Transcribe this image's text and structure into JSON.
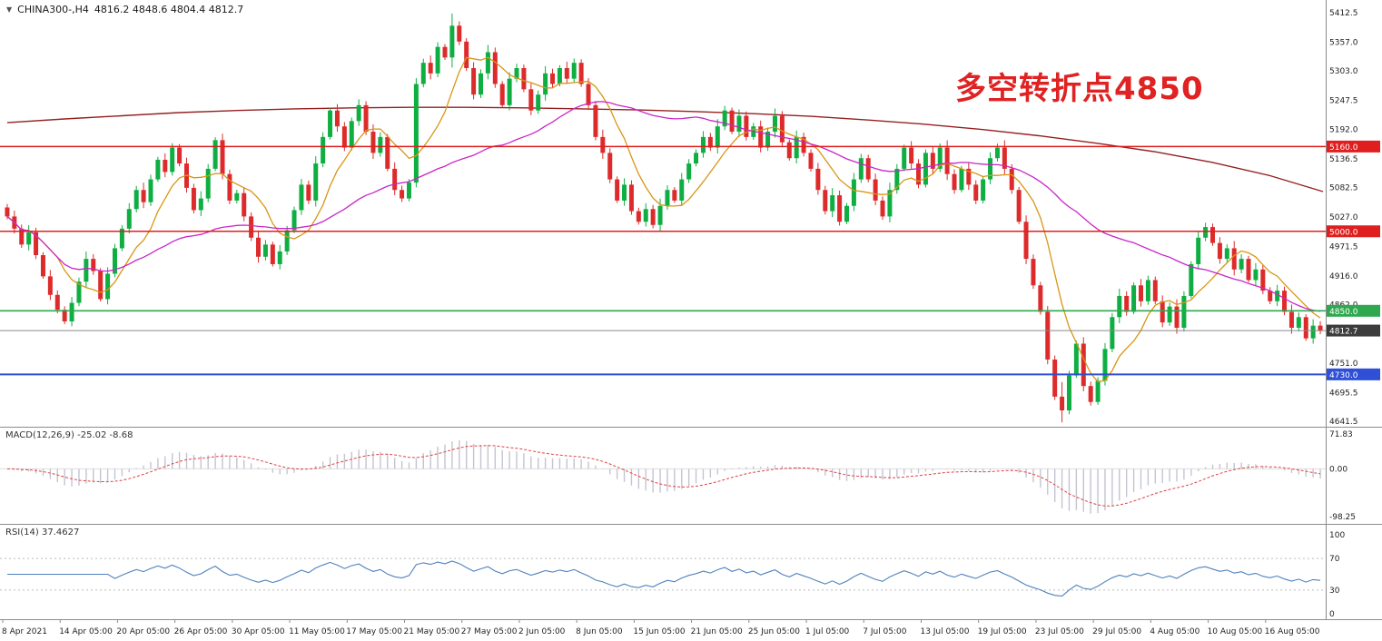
{
  "symbol_bar": {
    "symbol": "CHINA300-,H4",
    "ohlc": "4816.2 4848.6 4804.4 4812.7",
    "dropdown_icon": "triangle-down-icon"
  },
  "annotation": {
    "text": "多空转折点4850",
    "color": "#E02222"
  },
  "colors": {
    "candle_up": "#0EAE42",
    "candle_down": "#DD2B2B",
    "ma_fast": "#D89614",
    "ma_mid": "#C826C8",
    "ma_long": "#952020",
    "macd_hist": "#C4C4D2",
    "macd_signal": "#E04040",
    "rsi_line": "#4F81BD",
    "axis_text": "#222222",
    "separator": "#8c8c8c"
  },
  "chart_data": {
    "type": "candlestick",
    "instrument": "CHINA300-",
    "timeframe": "H4",
    "title": "CHINA300- H4 candlestick chart with MACD and RSI",
    "price_range": {
      "top": 5412.5,
      "bottom": 4641.5
    },
    "price_ticks": [
      "5412.5",
      "5357.0",
      "5303.0",
      "5247.5",
      "5192.0",
      "5136.5",
      "5082.5",
      "5027.0",
      "4971.5",
      "4916.0",
      "4862.0",
      "4751.0",
      "4695.5",
      "4641.5"
    ],
    "levels": [
      {
        "label": "5160.0",
        "value": 5160.0,
        "color": "#DF1F1F",
        "width": 1.6
      },
      {
        "label": "5000.0",
        "value": 5000.0,
        "color": "#DF1F1F",
        "width": 1.6
      },
      {
        "label": "4850.0",
        "value": 4850.0,
        "color": "#2FA84F",
        "width": 1.6
      },
      {
        "label": "4730.0",
        "value": 4730.0,
        "color": "#2F4FD6",
        "width": 2
      }
    ],
    "current_price": {
      "label": "4812.7",
      "value": 4812.7,
      "line_color": "#8a8a8a",
      "tag_bg": "#3C3C3C"
    },
    "candles": {
      "first_open": 5045,
      "closes": [
        5028,
        5005,
        4975,
        4998,
        4955,
        4915,
        4880,
        4852,
        4830,
        4865,
        4905,
        4948,
        4925,
        4872,
        4920,
        4968,
        5005,
        5042,
        5078,
        5055,
        5098,
        5135,
        5112,
        5158,
        5128,
        5082,
        5040,
        5062,
        5118,
        5172,
        5108,
        5058,
        5072,
        5028,
        4988,
        4952,
        4975,
        4938,
        4962,
        5002,
        5040,
        5088,
        5058,
        5128,
        5178,
        5228,
        5198,
        5158,
        5208,
        5238,
        5188,
        5148,
        5178,
        5118,
        5078,
        5062,
        5092,
        5278,
        5318,
        5298,
        5348,
        5328,
        5388,
        5358,
        5308,
        5258,
        5298,
        5338,
        5278,
        5238,
        5288,
        5308,
        5268,
        5228,
        5258,
        5298,
        5278,
        5308,
        5288,
        5318,
        5278,
        5238,
        5178,
        5148,
        5098,
        5058,
        5088,
        5038,
        5018,
        5042,
        5012,
        5048,
        5078,
        5058,
        5098,
        5128,
        5148,
        5178,
        5158,
        5198,
        5228,
        5188,
        5218,
        5178,
        5198,
        5158,
        5188,
        5218,
        5168,
        5138,
        5178,
        5148,
        5118,
        5078,
        5038,
        5068,
        5018,
        5048,
        5098,
        5138,
        5098,
        5058,
        5028,
        5078,
        5118,
        5158,
        5128,
        5088,
        5148,
        5118,
        5158,
        5108,
        5078,
        5118,
        5088,
        5058,
        5098,
        5138,
        5158,
        5118,
        5078,
        5018,
        4948,
        4898,
        4848,
        4758,
        4688,
        4662,
        4728,
        4788,
        4708,
        4678,
        4718,
        4778,
        4838,
        4878,
        4848,
        4898,
        4868,
        4908,
        4868,
        4828,
        4858,
        4818,
        4878,
        4938,
        4988,
        5008,
        4978,
        4948,
        4968,
        4928,
        4948,
        4908,
        4928,
        4888,
        4868,
        4888,
        4848,
        4818,
        4838,
        4798,
        4822,
        4812.7
      ],
      "wicks": [
        12,
        20,
        14,
        25,
        16,
        10,
        22,
        15,
        12,
        20,
        14,
        25,
        16,
        10,
        22,
        15,
        12,
        20,
        14,
        25,
        16,
        10,
        22,
        15,
        12,
        20,
        14,
        25,
        16,
        10,
        22,
        15,
        12,
        20,
        14,
        25,
        16,
        10,
        22,
        15,
        12,
        20,
        14,
        25,
        16,
        10,
        22,
        15,
        12,
        20,
        14,
        25,
        16,
        10,
        22,
        15,
        12,
        20,
        14,
        25,
        16,
        10,
        42,
        15,
        12,
        20,
        14,
        25,
        16,
        10,
        22,
        15,
        12,
        20,
        14,
        25,
        16,
        10,
        22,
        15,
        12,
        20,
        14,
        25,
        16,
        10,
        22,
        15,
        12,
        20,
        14,
        25,
        16,
        10,
        22,
        15,
        12,
        20,
        14,
        25,
        16,
        10,
        22,
        15,
        12,
        20,
        14,
        25,
        16,
        10,
        22,
        15,
        12,
        20,
        14,
        25,
        16,
        10,
        22,
        15,
        12,
        20,
        14,
        25,
        16,
        10,
        22,
        15,
        12,
        20,
        14,
        25,
        16,
        10,
        22,
        15,
        12,
        20,
        14,
        25,
        16,
        10,
        22,
        15,
        12,
        20,
        14,
        50,
        16,
        10,
        22,
        15,
        12,
        20,
        14,
        25,
        16,
        10,
        22,
        15,
        12,
        20,
        14,
        25,
        16,
        10,
        22,
        15,
        12,
        20,
        14,
        25,
        16,
        10,
        22,
        15,
        12,
        20,
        14,
        25,
        16,
        10,
        22,
        15
      ]
    },
    "moving_averages": {
      "fast_period": 8,
      "mid_period": 40
    },
    "ma_long_points": [
      5205,
      5212,
      5218,
      5224,
      5228,
      5231,
      5233,
      5234,
      5234,
      5233,
      5231,
      5229,
      5226,
      5222,
      5217,
      5210,
      5202,
      5192,
      5180,
      5166,
      5150,
      5130,
      5105,
      5075
    ],
    "time_labels": [
      "8 Apr 2021",
      "14 Apr 05:00",
      "20 Apr 05:00",
      "26 Apr 05:00",
      "30 Apr 05:00",
      "11 May 05:00",
      "17 May 05:00",
      "21 May 05:00",
      "27 May 05:00",
      "2 Jun 05:00",
      "8 Jun 05:00",
      "15 Jun 05:00",
      "21 Jun 05:00",
      "25 Jun 05:00",
      "1 Jul 05:00",
      "7 Jul 05:00",
      "13 Jul 05:00",
      "19 Jul 05:00",
      "23 Jul 05:00",
      "29 Jul 05:00",
      "4 Aug 05:00",
      "10 Aug 05:00",
      "16 Aug 05:00"
    ],
    "macd": {
      "label": "MACD(12,26,9)",
      "values_text": "-25.02 -8.68",
      "params": [
        12,
        26,
        9
      ],
      "axis": [
        "71.83",
        "0.00",
        "-98.25"
      ],
      "axis_values": [
        71.83,
        0.0,
        -98.25
      ]
    },
    "rsi": {
      "label": "RSI(14)",
      "value_text": "37.4627",
      "period": 14,
      "axis": [
        "100",
        "70",
        "30",
        "0"
      ],
      "level_lines": [
        70,
        30
      ]
    }
  }
}
